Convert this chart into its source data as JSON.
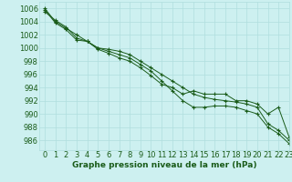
{
  "xlabel": "Graphe pression niveau de la mer (hPa)",
  "background_color": "#cdf0f0",
  "grid_color": "#b0dede",
  "line_color": "#1a5c1a",
  "xlim": [
    -0.5,
    23
  ],
  "ylim": [
    984.5,
    1007
  ],
  "yticks": [
    986,
    988,
    990,
    992,
    994,
    996,
    998,
    1000,
    1002,
    1004,
    1006
  ],
  "xticks": [
    0,
    1,
    2,
    3,
    4,
    5,
    6,
    7,
    8,
    9,
    10,
    11,
    12,
    13,
    14,
    15,
    16,
    17,
    18,
    19,
    20,
    21,
    22,
    23
  ],
  "series": [
    [
      1006,
      1004,
      1003,
      1002,
      1001,
      1000,
      999.8,
      999.5,
      999,
      998,
      997,
      996,
      995,
      994,
      993,
      992.5,
      992.2,
      992,
      991.8,
      991.5,
      991,
      988.5,
      987.5,
      986
    ],
    [
      1005.5,
      1004.2,
      1003.2,
      1001.5,
      1001,
      1000,
      999.5,
      999,
      998.5,
      997.5,
      996.5,
      995,
      993.5,
      992,
      991,
      991,
      991.2,
      991.2,
      991,
      990.5,
      990,
      988,
      987,
      985.5
    ],
    [
      1005.8,
      1003.8,
      1002.8,
      1001.2,
      1001,
      999.8,
      999.2,
      998.5,
      998,
      997,
      995.8,
      994.5,
      994,
      993,
      993.5,
      993,
      993,
      993,
      992,
      992,
      991.5,
      990,
      991,
      986.5
    ]
  ],
  "marker": "+",
  "markersize": 3.5,
  "linewidth": 0.7,
  "font_size": 6,
  "xlabel_font_size": 6.5
}
